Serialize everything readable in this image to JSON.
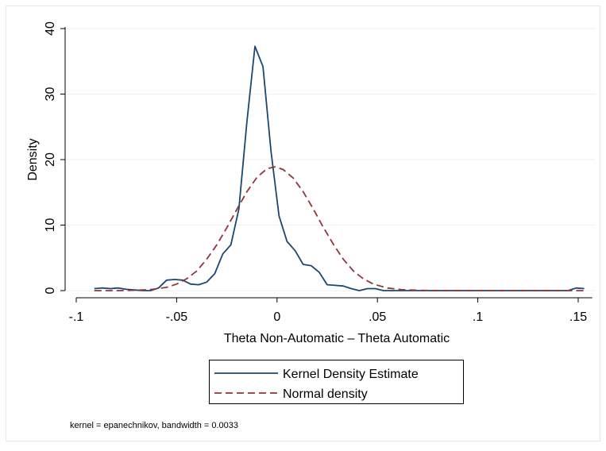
{
  "chart_data": {
    "type": "line",
    "title": "",
    "xlabel": "Theta Non-Automatic – Theta Automatic",
    "ylabel": "Density",
    "xlim": [
      -0.092,
      0.157
    ],
    "ylim": [
      0,
      40
    ],
    "x_ticks": [
      {
        "value": -0.1,
        "label": "-.1"
      },
      {
        "value": -0.05,
        "label": "-.05"
      },
      {
        "value": 0,
        "label": "0"
      },
      {
        "value": 0.05,
        "label": ".05"
      },
      {
        "value": 0.1,
        "label": ".1"
      },
      {
        "value": 0.15,
        "label": ".15"
      }
    ],
    "y_ticks": [
      {
        "value": 0,
        "label": "0"
      },
      {
        "value": 10,
        "label": "10"
      },
      {
        "value": 20,
        "label": "20"
      },
      {
        "value": 30,
        "label": "30"
      },
      {
        "value": 40,
        "label": "40"
      }
    ],
    "grid": "horizontal",
    "legend_position": "bottom",
    "note": "kernel = epanechnikov, bandwidth = 0.0033",
    "series": [
      {
        "name": "Kernel Density Estimate",
        "color": "#1a476f",
        "style": "solid",
        "points": [
          [
            -0.091,
            0.3
          ],
          [
            -0.087,
            0.4
          ],
          [
            -0.083,
            0.3
          ],
          [
            -0.079,
            0.4
          ],
          [
            -0.075,
            0.2
          ],
          [
            -0.071,
            0.1
          ],
          [
            -0.067,
            0.0
          ],
          [
            -0.063,
            0.0
          ],
          [
            -0.059,
            0.4
          ],
          [
            -0.055,
            1.6
          ],
          [
            -0.051,
            1.7
          ],
          [
            -0.047,
            1.6
          ],
          [
            -0.043,
            1.0
          ],
          [
            -0.039,
            0.9
          ],
          [
            -0.035,
            1.3
          ],
          [
            -0.031,
            2.6
          ],
          [
            -0.027,
            5.6
          ],
          [
            -0.023,
            7.0
          ],
          [
            -0.019,
            12.5
          ],
          [
            -0.015,
            25.8
          ],
          [
            -0.011,
            37.3
          ],
          [
            -0.007,
            34.2
          ],
          [
            -0.003,
            21.3
          ],
          [
            0.001,
            11.4
          ],
          [
            0.005,
            7.5
          ],
          [
            0.009,
            6.1
          ],
          [
            0.013,
            4.0
          ],
          [
            0.017,
            3.8
          ],
          [
            0.021,
            2.8
          ],
          [
            0.025,
            0.9
          ],
          [
            0.029,
            0.8
          ],
          [
            0.033,
            0.7
          ],
          [
            0.037,
            0.3
          ],
          [
            0.041,
            0.0
          ],
          [
            0.045,
            0.3
          ],
          [
            0.049,
            0.3
          ],
          [
            0.053,
            0.0
          ],
          [
            0.057,
            0.0
          ],
          [
            0.062,
            0.0
          ],
          [
            0.07,
            0.0
          ],
          [
            0.08,
            0.0
          ],
          [
            0.09,
            0.0
          ],
          [
            0.1,
            0.0
          ],
          [
            0.11,
            0.0
          ],
          [
            0.12,
            0.0
          ],
          [
            0.13,
            0.0
          ],
          [
            0.14,
            0.0
          ],
          [
            0.145,
            0.0
          ],
          [
            0.149,
            0.4
          ],
          [
            0.153,
            0.3
          ]
        ]
      },
      {
        "name": "Normal density",
        "color": "#90353b",
        "style": "dashed",
        "points": [
          [
            -0.091,
            0.0
          ],
          [
            -0.08,
            0.0
          ],
          [
            -0.07,
            0.05
          ],
          [
            -0.062,
            0.2
          ],
          [
            -0.055,
            0.5
          ],
          [
            -0.05,
            1.0
          ],
          [
            -0.045,
            1.8
          ],
          [
            -0.04,
            3.0
          ],
          [
            -0.035,
            4.8
          ],
          [
            -0.03,
            7.0
          ],
          [
            -0.025,
            9.6
          ],
          [
            -0.02,
            12.4
          ],
          [
            -0.015,
            15.1
          ],
          [
            -0.01,
            17.3
          ],
          [
            -0.005,
            18.6
          ],
          [
            -0.001,
            18.9
          ],
          [
            0.003,
            18.5
          ],
          [
            0.008,
            17.2
          ],
          [
            0.013,
            15.1
          ],
          [
            0.018,
            12.5
          ],
          [
            0.023,
            9.7
          ],
          [
            0.028,
            7.1
          ],
          [
            0.033,
            4.8
          ],
          [
            0.038,
            3.0
          ],
          [
            0.043,
            1.8
          ],
          [
            0.048,
            1.0
          ],
          [
            0.055,
            0.4
          ],
          [
            0.062,
            0.15
          ],
          [
            0.07,
            0.05
          ],
          [
            0.08,
            0.0
          ],
          [
            0.1,
            0.0
          ],
          [
            0.12,
            0.0
          ],
          [
            0.14,
            0.0
          ],
          [
            0.153,
            0.0
          ]
        ]
      }
    ]
  }
}
